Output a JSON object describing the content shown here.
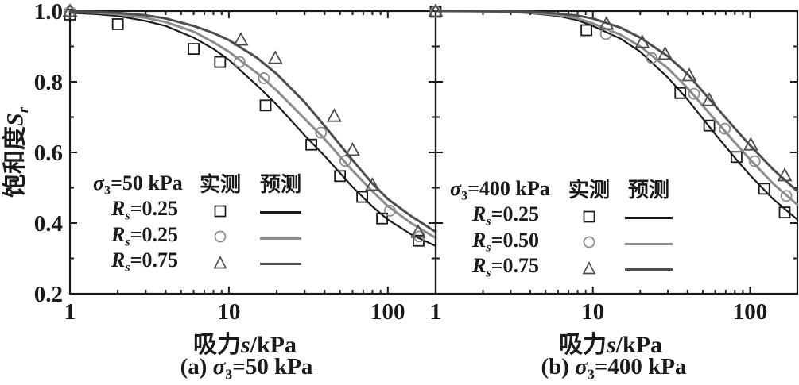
{
  "colors": {
    "black": "#1a1a1a",
    "gray": "#8c8c8c",
    "dark": "#4d4d4d"
  },
  "axes": {
    "y": {
      "cjk": "饱和度",
      "sym": "S",
      "sub": "r"
    },
    "x": {
      "cjk": "吸力",
      "sym": "s",
      "rest": "/kPa"
    }
  },
  "captions": {
    "a": {
      "prefix": "(a) ",
      "sigma": "σ",
      "sigma_sub": "3",
      "value": "=50 kPa"
    },
    "b": {
      "prefix": "(b) ",
      "sigma": "σ",
      "sigma_sub": "3",
      "value": "=400 kPa"
    }
  },
  "legends": {
    "a": {
      "sigma": "σ",
      "sigma_sub": "3",
      "sigma_val": "=50 kPa",
      "measured": "实测",
      "predicted": "预测",
      "rows": [
        {
          "r": "R",
          "r_sub": "s",
          "val": "=0.25",
          "marker": "square"
        },
        {
          "r": "R",
          "r_sub": "s",
          "val": "=0.25",
          "marker": "circle"
        },
        {
          "r": "R",
          "r_sub": "s",
          "val": "=0.75",
          "marker": "triangle"
        }
      ]
    },
    "b": {
      "sigma": "σ",
      "sigma_sub": "3",
      "sigma_val": "=400 kPa",
      "measured": "实测",
      "predicted": "预测",
      "rows": [
        {
          "r": "R",
          "r_sub": "s",
          "val": "=0.25",
          "marker": "square"
        },
        {
          "r": "R",
          "r_sub": "s",
          "val": "=0.50",
          "marker": "circle"
        },
        {
          "r": "R",
          "r_sub": "s",
          "val": "=0.75",
          "marker": "triangle"
        }
      ]
    }
  },
  "chart_data": [
    {
      "type": "scatter",
      "panel": "a",
      "caption": "(a) σ3=50 kPa",
      "condition": "σ3=50 kPa",
      "xlabel": "吸力s/kPa",
      "ylabel": "饱和度Sr",
      "xscale": "log",
      "xlim": [
        1,
        200
      ],
      "ylim": [
        0.2,
        1.0
      ],
      "x_major_ticks": [
        1,
        10,
        100
      ],
      "x_tick_labels": [
        "1",
        "10",
        "100"
      ],
      "x_minor_ticks": [
        2,
        3,
        4,
        5,
        6,
        7,
        8,
        9,
        20,
        30,
        40,
        50,
        60,
        70,
        80,
        90,
        200
      ],
      "y_major_ticks": [
        0.2,
        0.4,
        0.6,
        0.8,
        1.0
      ],
      "y_tick_labels": [
        "0.2",
        "0.4",
        "0.6",
        "0.8",
        "1.0"
      ],
      "y_minor_ticks": [
        0.3,
        0.5,
        0.7,
        0.9
      ],
      "legend_position": "lower-left",
      "grid": false,
      "curve_x": [
        1,
        1.5,
        2,
        3,
        4,
        6,
        8,
        10,
        15,
        20,
        30,
        40,
        60,
        80,
        100,
        140,
        200
      ],
      "series": [
        {
          "name": "Rs=0.25",
          "marker": "square",
          "color": "#1a1a1a",
          "line_width": 2.2,
          "measured_points": [
            [
              1,
              0.99
            ],
            [
              2,
              0.963
            ],
            [
              6,
              0.893
            ],
            [
              8.8,
              0.856
            ],
            [
              17,
              0.733
            ],
            [
              33,
              0.622
            ],
            [
              50,
              0.533
            ],
            [
              69,
              0.474
            ],
            [
              92,
              0.413
            ],
            [
              156,
              0.35
            ]
          ],
          "predicted_y": [
            0.995,
            0.991,
            0.986,
            0.972,
            0.958,
            0.925,
            0.893,
            0.862,
            0.79,
            0.735,
            0.648,
            0.59,
            0.502,
            0.447,
            0.41,
            0.368,
            0.335
          ]
        },
        {
          "name": "Rs=0.25",
          "marker": "circle",
          "color": "#8c8c8c",
          "line_width": 3,
          "measured_points": [
            [
              1,
              0.998
            ],
            [
              11.7,
              0.856
            ],
            [
              16.6,
              0.81
            ],
            [
              38,
              0.656
            ],
            [
              54,
              0.576
            ],
            [
              103,
              0.435
            ],
            [
              158,
              0.362
            ]
          ],
          "predicted_y": [
            0.998,
            0.995,
            0.991,
            0.981,
            0.969,
            0.942,
            0.912,
            0.885,
            0.825,
            0.775,
            0.695,
            0.638,
            0.548,
            0.49,
            0.448,
            0.4,
            0.358
          ]
        },
        {
          "name": "Rs=0.75",
          "marker": "triangle",
          "color": "#4d4d4d",
          "line_width": 3,
          "measured_points": [
            [
              1,
              1.0
            ],
            [
              11.9,
              0.919
            ],
            [
              19.6,
              0.867
            ],
            [
              46,
              0.703
            ],
            [
              60,
              0.607
            ],
            [
              80,
              0.508
            ],
            [
              155,
              0.375
            ]
          ],
          "predicted_y": [
            0.999,
            0.997,
            0.995,
            0.988,
            0.979,
            0.958,
            0.938,
            0.918,
            0.868,
            0.822,
            0.742,
            0.675,
            0.578,
            0.512,
            0.468,
            0.42,
            0.375
          ]
        }
      ]
    },
    {
      "type": "scatter",
      "panel": "b",
      "caption": "(b) σ3=400 kPa",
      "condition": "σ3=400 kPa",
      "xlabel": "吸力s/kPa",
      "ylabel": "",
      "xscale": "log",
      "xlim": [
        1,
        200
      ],
      "ylim": [
        0.2,
        1.0
      ],
      "x_major_ticks": [
        1,
        10,
        100
      ],
      "x_tick_labels": [
        "1",
        "10",
        "100"
      ],
      "x_minor_ticks": [
        2,
        3,
        4,
        5,
        6,
        7,
        8,
        9,
        20,
        30,
        40,
        50,
        60,
        70,
        80,
        90,
        200
      ],
      "y_major_ticks": [
        0.2,
        0.4,
        0.6,
        0.8,
        1.0
      ],
      "y_tick_labels": [],
      "y_minor_ticks": [
        0.3,
        0.5,
        0.7,
        0.9
      ],
      "legend_position": "lower-left",
      "grid": false,
      "curve_x": [
        1,
        1.5,
        2,
        3,
        4,
        6,
        8,
        10,
        15,
        20,
        30,
        40,
        60,
        80,
        100,
        140,
        200
      ],
      "series": [
        {
          "name": "Rs=0.25",
          "marker": "square",
          "color": "#1a1a1a",
          "line_width": 2.2,
          "measured_points": [
            [
              1,
              0.998
            ],
            [
              9.1,
              0.946
            ],
            [
              36,
              0.768
            ],
            [
              55,
              0.676
            ],
            [
              82,
              0.587
            ],
            [
              123,
              0.497
            ],
            [
              166,
              0.43
            ]
          ],
          "predicted_y": [
            1,
            0.9995,
            0.999,
            0.997,
            0.994,
            0.986,
            0.974,
            0.958,
            0.922,
            0.885,
            0.812,
            0.75,
            0.652,
            0.585,
            0.535,
            0.468,
            0.41
          ]
        },
        {
          "name": "Rs=0.50",
          "marker": "circle",
          "color": "#8c8c8c",
          "line_width": 3,
          "measured_points": [
            [
              1,
              0.998
            ],
            [
              12.1,
              0.935
            ],
            [
              23.7,
              0.867
            ],
            [
              44,
              0.766
            ],
            [
              69,
              0.667
            ],
            [
              107,
              0.575
            ],
            [
              170,
              0.477
            ]
          ],
          "predicted_y": [
            1,
            0.9998,
            0.9995,
            0.998,
            0.996,
            0.989,
            0.979,
            0.965,
            0.933,
            0.9,
            0.838,
            0.782,
            0.692,
            0.628,
            0.58,
            0.512,
            0.452
          ]
        },
        {
          "name": "Rs=0.75",
          "marker": "triangle",
          "color": "#4d4d4d",
          "line_width": 3,
          "measured_points": [
            [
              1,
              1.0
            ],
            [
              12.2,
              0.964
            ],
            [
              20.6,
              0.912
            ],
            [
              28.8,
              0.879
            ],
            [
              41,
              0.818
            ],
            [
              55,
              0.748
            ],
            [
              101,
              0.622
            ],
            [
              166,
              0.535
            ]
          ],
          "predicted_y": [
            1,
            1,
            0.9998,
            0.999,
            0.998,
            0.993,
            0.987,
            0.979,
            0.953,
            0.925,
            0.872,
            0.822,
            0.732,
            0.668,
            0.62,
            0.552,
            0.49
          ]
        }
      ]
    }
  ]
}
